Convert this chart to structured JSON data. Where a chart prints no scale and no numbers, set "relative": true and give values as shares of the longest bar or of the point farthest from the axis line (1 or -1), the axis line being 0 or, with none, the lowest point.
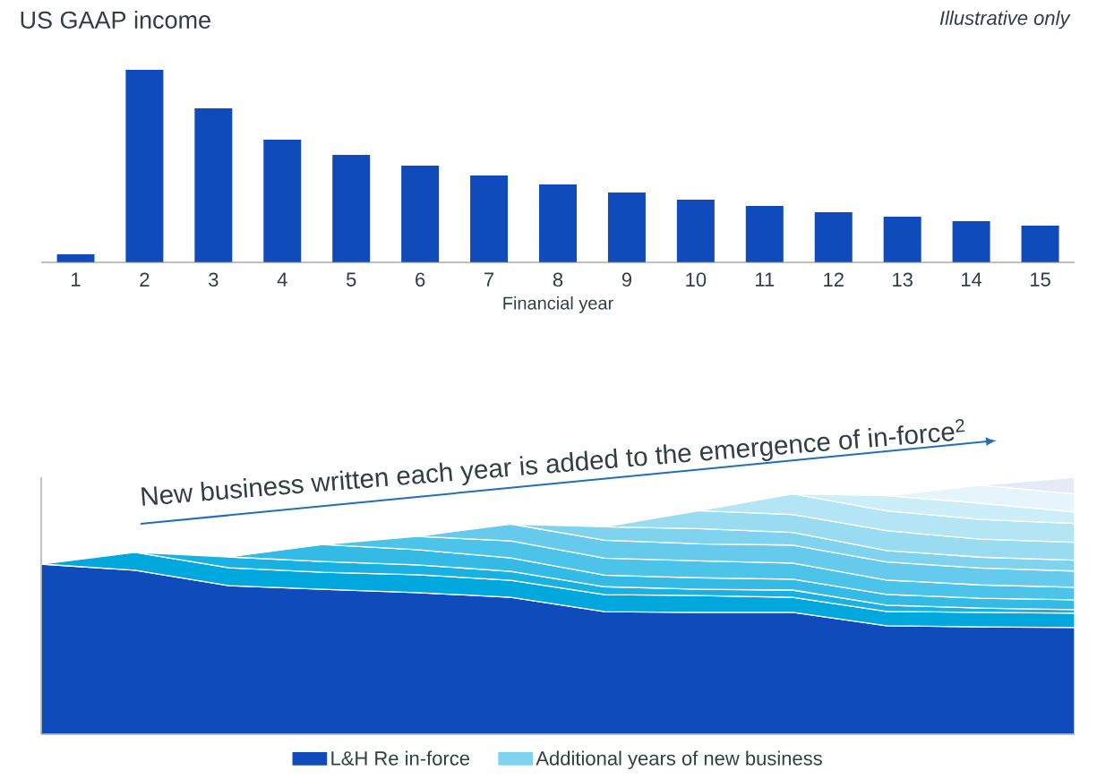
{
  "chart_data": [
    {
      "type": "bar",
      "title": "US GAAP income",
      "xlabel": "Financial year",
      "annotations": [
        "Illustrative only"
      ],
      "relative": true,
      "categories": [
        "1",
        "2",
        "3",
        "4",
        "5",
        "6",
        "7",
        "8",
        "9",
        "10",
        "11",
        "12",
        "13",
        "14",
        "15"
      ],
      "values": [
        0.042,
        1,
        0.8,
        0.637,
        0.558,
        0.502,
        0.451,
        0.405,
        0.363,
        0.326,
        0.293,
        0.26,
        0.237,
        0.214,
        0.191
      ],
      "color": "#104bbb"
    },
    {
      "type": "area",
      "relative": true,
      "stacked": true,
      "legend": "bottom",
      "annotations": [
        "New business written each year is added to the emergence of in-force$^{2}$"
      ],
      "categories": [
        null,
        null,
        null,
        null,
        null,
        null,
        null,
        null,
        null,
        null,
        null,
        null
      ],
      "series": [
        {
          "name": "L&H Re in-force",
          "color": "#104bbb",
          "values": [
            0.662,
            0.638,
            0.578,
            0.564,
            0.551,
            0.533,
            0.477,
            0.474,
            0.474,
            0.422,
            0.418,
            0.415
          ]
        },
        {
          "color": "#00a8de",
          "values": [
            0,
            0.07,
            0.07,
            0.066,
            0.07,
            0.066,
            0.066,
            0.066,
            0.059,
            0.056,
            0.056,
            0.056
          ]
        },
        {
          "color": "#19b1e2",
          "values": [
            null,
            0,
            0.042,
            0.042,
            0.038,
            0.035,
            0.031,
            0.024,
            0.028,
            0.024,
            0.017,
            0.014
          ]
        },
        {
          "color": "#33bbe6",
          "values": [
            null,
            null,
            0,
            0.066,
            0.059,
            0.052,
            0.045,
            0.045,
            0.042,
            0.042,
            0.038,
            0.038
          ]
        },
        {
          "color": "#4cc3e8",
          "values": [
            null,
            null,
            null,
            0,
            0.052,
            0.066,
            0.066,
            0.066,
            0.063,
            0.056,
            0.052,
            0.049
          ]
        },
        {
          "color": "#66caec",
          "values": [
            null,
            null,
            null,
            null,
            0,
            0.066,
            0.07,
            0.066,
            0.07,
            0.07,
            0.066,
            0.063
          ]
        },
        {
          "name": "Additional years of new business",
          "color": "#80d3ef",
          "values": [
            null,
            null,
            null,
            null,
            null,
            0,
            0.052,
            0.059,
            0.049,
            0.045,
            0.042,
            0.042
          ]
        },
        {
          "color": "#99dcf2",
          "values": [
            null,
            null,
            null,
            null,
            null,
            null,
            0,
            0.07,
            0.07,
            0.077,
            0.07,
            0.07
          ]
        },
        {
          "color": "#b3e5f5",
          "values": [
            null,
            null,
            null,
            null,
            null,
            null,
            null,
            0,
            0.08,
            0.077,
            0.077,
            0.073
          ]
        },
        {
          "color": "#cceef8",
          "values": [
            null,
            null,
            null,
            null,
            null,
            null,
            null,
            null,
            0,
            0.059,
            0.063,
            0.045
          ]
        },
        {
          "color": "#e5f5fb",
          "values": [
            null,
            null,
            null,
            null,
            null,
            null,
            null,
            null,
            null,
            0,
            0.07,
            0.07
          ]
        },
        {
          "color": "#e6eaf6",
          "values": [
            null,
            null,
            null,
            null,
            null,
            null,
            null,
            null,
            null,
            null,
            0,
            0.065
          ]
        }
      ]
    }
  ]
}
